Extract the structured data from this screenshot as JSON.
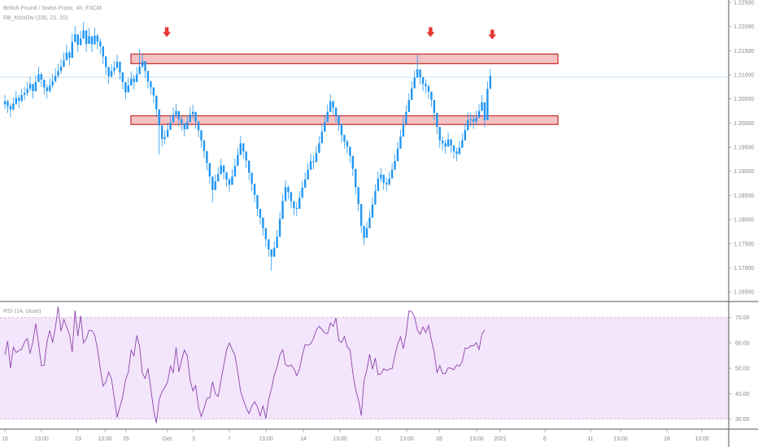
{
  "header": {
    "symbol_line": "British Pound / Swiss Franc, 4h, FXCM",
    "indicator_line": "RB_KtoxDiv (150, 21, 20)"
  },
  "rsi_panel": {
    "label": "RSI (14, close)"
  },
  "colors": {
    "candle": "#2196f3",
    "arrow": "#e53935",
    "zone_fill": "#f4c2c2",
    "zone_border": "#c62828",
    "rsi_line": "#8e44ad",
    "rsi_band": "#f3e5fb",
    "price_line": "#b3d9f2"
  },
  "x_axis": {
    "ticks": [
      "16",
      "13:00",
      "23",
      "13:00",
      "26",
      "Dec",
      "3",
      "7",
      "13:00",
      "14",
      "13:00",
      "21",
      "13:00",
      "28",
      "13:00",
      "2021",
      "6",
      "11",
      "13:00",
      "18",
      "13:00"
    ]
  },
  "chart_data": [
    {
      "type": "candlestick",
      "title": "British Pound / Swiss Franc, 4h, FXCM",
      "ylim": [
        1.163,
        1.2255
      ],
      "y_ticks": [
        "1.22500",
        "1.22000",
        "1.21500",
        "1.21000",
        "1.20500",
        "1.20000",
        "1.19500",
        "1.19000",
        "1.18500",
        "1.18000",
        "1.17500",
        "1.17000",
        "1.16500"
      ],
      "current_price": 1.2095,
      "zones": [
        {
          "low": 1.2123,
          "high": 1.2143
        },
        {
          "low": 1.1997,
          "high": 1.2015
        }
      ],
      "arrows": [
        1.2185,
        1.2185,
        1.218
      ],
      "close": [
        1.2045,
        1.2035,
        1.2028,
        1.204,
        1.2052,
        1.2046,
        1.2058,
        1.2062,
        1.2071,
        1.2081,
        1.2066,
        1.2085,
        1.2101,
        1.209,
        1.2074,
        1.2066,
        1.2078,
        1.2087,
        1.2098,
        1.2108,
        1.2117,
        1.213,
        1.2146,
        1.2135,
        1.2168,
        1.2184,
        1.2162,
        1.2175,
        1.2192,
        1.2164,
        1.218,
        1.2163,
        1.2181,
        1.2169,
        1.2159,
        1.2138,
        1.2116,
        1.2097,
        1.2108,
        1.2115,
        1.2127,
        1.2105,
        1.2085,
        1.2064,
        1.2078,
        1.2092,
        1.2085,
        1.2101,
        1.2117,
        1.2128,
        1.2108,
        1.2086,
        1.2074,
        1.2057,
        1.2028,
        1.1995,
        1.1967,
        1.1971,
        1.1986,
        1.2001,
        1.2017,
        1.2025,
        1.2008,
        1.1999,
        1.1987,
        1.2002,
        1.2018,
        1.2023,
        1.2003,
        1.1985,
        1.1964,
        1.1942,
        1.1917,
        1.1889,
        1.1861,
        1.1879,
        1.1894,
        1.1912,
        1.1898,
        1.1883,
        1.1872,
        1.1889,
        1.1911,
        1.1934,
        1.1958,
        1.1941,
        1.1922,
        1.1897,
        1.1874,
        1.1851,
        1.1822,
        1.1804,
        1.1782,
        1.1759,
        1.1738,
        1.1723,
        1.1741,
        1.1764,
        1.1801,
        1.1838,
        1.1867,
        1.1857,
        1.1838,
        1.1824,
        1.1822,
        1.1845,
        1.1866,
        1.1883,
        1.1903,
        1.1921,
        1.1919,
        1.1938,
        1.1958,
        1.1982,
        1.2002,
        1.2023,
        1.2045,
        1.2032,
        1.2016,
        1.1998,
        1.1975,
        1.1962,
        1.1951,
        1.1932,
        1.1905,
        1.1867,
        1.1832,
        1.1787,
        1.1762,
        1.1782,
        1.1804,
        1.1831,
        1.1859,
        1.1885,
        1.1893,
        1.1876,
        1.1873,
        1.1885,
        1.1903,
        1.1921,
        1.1947,
        1.1972,
        1.1998,
        1.2023,
        1.2048,
        1.2072,
        1.2094,
        1.2111,
        1.2095,
        1.2081,
        1.2076,
        1.2065,
        1.2048,
        1.2021,
        1.1992,
        1.1964,
        1.1958,
        1.1951,
        1.1966,
        1.1953,
        1.1941,
        1.1936,
        1.1949,
        1.1964,
        1.1985,
        1.2006,
        1.2008,
        1.2003,
        1.2011,
        1.2025,
        1.2043,
        1.2006,
        1.2071,
        1.2098
      ],
      "high": [
        1.2058,
        1.2048,
        1.2041,
        1.2053,
        1.2066,
        1.2059,
        1.2071,
        1.2075,
        1.2085,
        1.2096,
        1.208,
        1.2099,
        1.2117,
        1.2105,
        1.2088,
        1.208,
        1.2092,
        1.2102,
        1.2113,
        1.2123,
        1.2132,
        1.2146,
        1.2163,
        1.2151,
        1.2185,
        1.2201,
        1.2178,
        1.2191,
        1.2209,
        1.2181,
        1.2197,
        1.2179,
        1.2198,
        1.2185,
        1.2175,
        1.2154,
        1.2131,
        1.2112,
        1.2122,
        1.2129,
        1.2141,
        1.212,
        1.2099,
        1.2078,
        1.2093,
        1.2107,
        1.21,
        1.2116,
        1.2153,
        1.2143,
        1.2123,
        1.2101,
        1.2088,
        1.2071,
        1.2043,
        1.2011,
        1.198,
        1.1985,
        1.2001,
        1.2016,
        1.2032,
        1.204,
        1.2023,
        1.2013,
        1.2001,
        1.2016,
        1.2033,
        1.2038,
        1.2018,
        1.1999,
        1.1978,
        1.1957,
        1.1932,
        1.1904,
        1.1875,
        1.1893,
        1.1908,
        1.1926,
        1.1913,
        1.1897,
        1.1886,
        1.1904,
        1.1926,
        1.1949,
        1.1973,
        1.1956,
        1.1936,
        1.1911,
        1.1888,
        1.1865,
        1.1837,
        1.1818,
        1.1796,
        1.1773,
        1.1752,
        1.1737,
        1.1755,
        1.1778,
        1.1815,
        1.1852,
        1.1881,
        1.1871,
        1.1852,
        1.1838,
        1.1836,
        1.1859,
        1.188,
        1.1897,
        1.1917,
        1.1936,
        1.1934,
        1.1953,
        1.1973,
        1.1997,
        1.2017,
        1.2038,
        1.206,
        1.2047,
        1.2031,
        1.2013,
        1.199,
        1.1976,
        1.1965,
        1.1946,
        1.1919,
        1.1881,
        1.1846,
        1.1801,
        1.1776,
        1.1796,
        1.1818,
        1.1845,
        1.1873,
        1.1899,
        1.1907,
        1.189,
        1.1887,
        1.1899,
        1.1917,
        1.1935,
        1.1961,
        1.1986,
        1.2012,
        1.2037,
        1.2062,
        1.2087,
        1.2109,
        1.2141,
        1.2111,
        1.2096,
        1.2091,
        1.208,
        1.2063,
        1.2036,
        1.2006,
        1.1979,
        1.1972,
        1.1965,
        1.198,
        1.1967,
        1.1955,
        1.1949,
        1.1963,
        1.1978,
        1.1999,
        1.2023,
        1.2022,
        1.2017,
        1.2025,
        1.2039,
        1.2058,
        1.2021,
        1.2086,
        1.2112
      ],
      "low": [
        1.2029,
        1.2021,
        1.2012,
        1.2025,
        1.2037,
        1.2031,
        1.2043,
        1.2047,
        1.2056,
        1.2066,
        1.2051,
        1.207,
        1.2086,
        1.2075,
        1.2059,
        1.2051,
        1.2063,
        1.2072,
        1.2083,
        1.2093,
        1.2102,
        1.2115,
        1.2131,
        1.212,
        1.2153,
        1.2169,
        1.2147,
        1.216,
        1.2176,
        1.2148,
        1.2164,
        1.2147,
        1.2165,
        1.2153,
        1.2143,
        1.2122,
        1.21,
        1.2082,
        1.2093,
        1.21,
        1.2112,
        1.209,
        1.207,
        1.2049,
        1.2063,
        1.2077,
        1.207,
        1.2086,
        1.2102,
        1.2113,
        1.2093,
        1.2071,
        1.2059,
        1.2042,
        1.2013,
        1.1935,
        1.1952,
        1.1956,
        1.1971,
        1.1986,
        1.2002,
        1.201,
        1.1993,
        1.1984,
        1.1972,
        1.1987,
        1.2003,
        1.2008,
        1.1988,
        1.197,
        1.1949,
        1.1927,
        1.1902,
        1.1874,
        1.1836,
        1.1864,
        1.1879,
        1.1897,
        1.1883,
        1.1868,
        1.1857,
        1.1874,
        1.1896,
        1.1919,
        1.1943,
        1.1926,
        1.1907,
        1.1882,
        1.1859,
        1.1836,
        1.1807,
        1.1789,
        1.1767,
        1.1744,
        1.1723,
        1.1694,
        1.1726,
        1.1749,
        1.1786,
        1.1823,
        1.1852,
        1.1842,
        1.1823,
        1.1809,
        1.1807,
        1.183,
        1.1851,
        1.1868,
        1.1888,
        1.1906,
        1.1904,
        1.1923,
        1.1943,
        1.1967,
        1.1987,
        1.2008,
        1.203,
        1.2017,
        1.2001,
        1.1983,
        1.196,
        1.1947,
        1.1936,
        1.1917,
        1.189,
        1.1852,
        1.1817,
        1.1772,
        1.1747,
        1.1767,
        1.1789,
        1.1816,
        1.1844,
        1.187,
        1.1878,
        1.1861,
        1.1858,
        1.187,
        1.1888,
        1.1906,
        1.1932,
        1.1957,
        1.1983,
        1.2008,
        1.2033,
        1.2057,
        1.2079,
        1.2096,
        1.208,
        1.2066,
        1.2061,
        1.205,
        1.2033,
        1.2006,
        1.1977,
        1.1949,
        1.1943,
        1.1936,
        1.1951,
        1.1938,
        1.1926,
        1.1921,
        1.1934,
        1.1949,
        1.197,
        1.1991,
        1.1993,
        1.1988,
        1.1996,
        1.201,
        1.2028,
        1.1991,
        1.2056,
        1.2083
      ]
    },
    {
      "type": "line",
      "title": "RSI (14, close)",
      "ylim": [
        26,
        76
      ],
      "y_ticks": [
        "70.00",
        "60.00",
        "50.00",
        "40.00",
        "30.00"
      ],
      "band": [
        30,
        70
      ],
      "values": [
        55.3,
        60.7,
        50.0,
        58.3,
        56.2,
        57.0,
        57.6,
        60.4,
        61.7,
        55.7,
        60.7,
        67.6,
        59.7,
        51.0,
        51.2,
        60.5,
        64.9,
        60.1,
        66.0,
        74.2,
        64.6,
        69.3,
        66.4,
        63.3,
        56.4,
        72.8,
        62.6,
        70.7,
        60.0,
        61.6,
        65.0,
        64.8,
        63.2,
        57.5,
        49.9,
        43.0,
        44.7,
        48.5,
        45.8,
        38.0,
        30.6,
        34.8,
        38.8,
        45.3,
        48.5,
        57.2,
        54.9,
        63.0,
        58.6,
        48.0,
        46.0,
        49.9,
        42.1,
        33.6,
        28.4,
        37.8,
        40.7,
        42.5,
        44.6,
        50.9,
        48.3,
        58.2,
        48.6,
        53.4,
        57.2,
        54.8,
        45.3,
        41.1,
        43.1,
        34.7,
        30.9,
        34.4,
        38.1,
        38.3,
        44.7,
        39.9,
        38.9,
        45.2,
        51.1,
        57.3,
        60.0,
        57.4,
        55.1,
        48.3,
        40.9,
        37.5,
        34.4,
        32.1,
        35.1,
        36.8,
        34.8,
        31.3,
        35.3,
        30.2,
        37.8,
        41.9,
        47.3,
        50.5,
        55.2,
        57.3,
        51.5,
        50.7,
        51.3,
        49.8,
        47.1,
        49.7,
        55.1,
        59.4,
        59.1,
        59.7,
        61.8,
        65.1,
        66.5,
        65.3,
        63.9,
        63.7,
        67.8,
        66.5,
        69.8,
        60.9,
        60.1,
        62.5,
        58.5,
        57.2,
        48.2,
        41.6,
        37.5,
        31.4,
        45.0,
        49.4,
        55.5,
        49.6,
        54.0,
        47.5,
        47.8,
        49.8,
        49.1,
        49.7,
        49.8,
        55.1,
        59.6,
        62.4,
        57.7,
        63.7,
        72.6,
        72.3,
        70.2,
        65.1,
        63.4,
        66.3,
        64.0,
        66.9,
        61.1,
        56.3,
        48.2,
        51.1,
        47.9,
        47.9,
        50.2,
        50.0,
        49.4,
        51.4,
        50.8,
        52.7,
        58.0,
        57.8,
        58.9,
        58.8,
        60.1,
        57.4,
        63.5,
        65.0
      ]
    }
  ]
}
